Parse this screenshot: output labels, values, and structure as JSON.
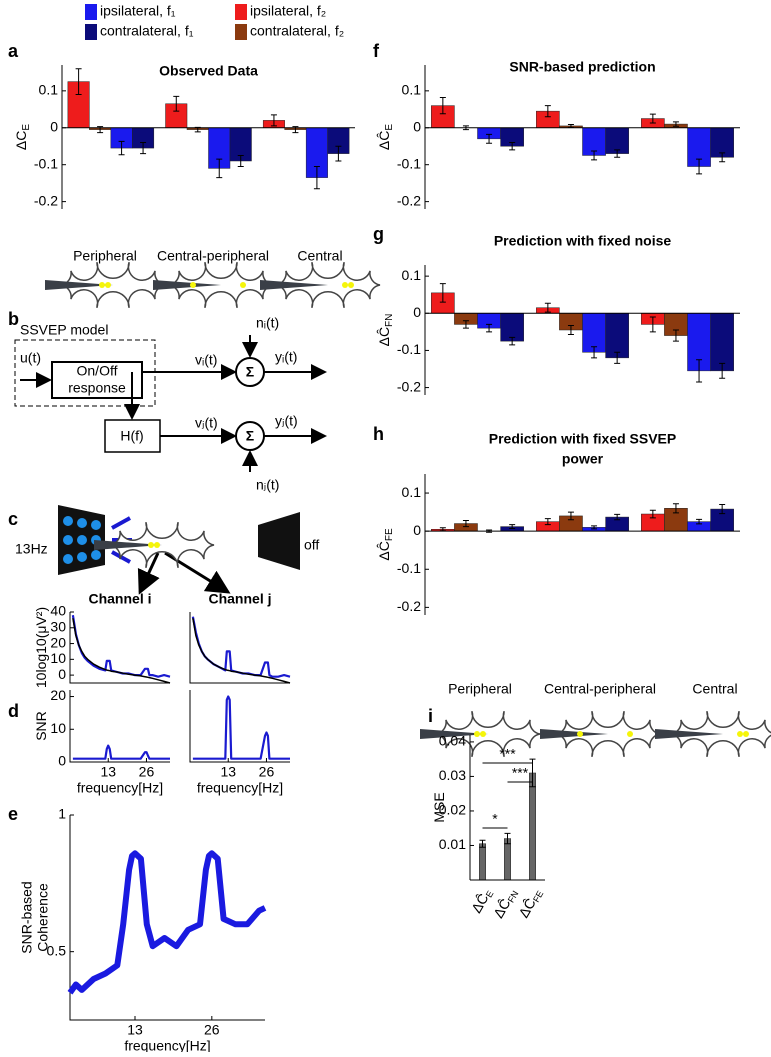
{
  "chart_data": [
    {
      "type": "bar",
      "title": "Observed Data",
      "ylabel": "ΔC",
      "ylabel_sub": "E",
      "categories": [
        "Peripheral",
        "Central-peripheral",
        "Central"
      ],
      "series": [
        {
          "name": "ipsilateral, f₂",
          "color": "#ee1c1c",
          "values": [
            0.125,
            0.065,
            0.02
          ],
          "errors": [
            0.035,
            0.02,
            0.015
          ]
        },
        {
          "name": "contralateral, f₂",
          "color": "#8b3a0f",
          "values": [
            -0.005,
            -0.005,
            -0.005
          ],
          "errors": [
            0.008,
            0.006,
            0.008
          ]
        },
        {
          "name": "ipsilateral, f₁",
          "color": "#1a1aee",
          "values": [
            -0.055,
            -0.11,
            -0.135
          ],
          "errors": [
            0.018,
            0.025,
            0.03
          ]
        },
        {
          "name": "contralateral, f₁",
          "color": "#0b0b7a",
          "values": [
            -0.055,
            -0.09,
            -0.07
          ],
          "errors": [
            0.015,
            0.015,
            0.02
          ]
        }
      ],
      "ylim": [
        -0.22,
        0.17
      ],
      "yticks": [
        0.1,
        0,
        -0.1,
        -0.2
      ]
    },
    {
      "type": "bar",
      "title": "SNR-based prediction",
      "ylabel": "ΔĈ",
      "ylabel_sub": "E",
      "series": [
        {
          "color": "#ee1c1c",
          "values": [
            0.06,
            0.045,
            0.025
          ],
          "errors": [
            0.022,
            0.015,
            0.012
          ]
        },
        {
          "color": "#8b3a0f",
          "values": [
            0.0,
            0.005,
            0.01
          ],
          "errors": [
            0.005,
            0.004,
            0.006
          ]
        },
        {
          "color": "#1a1aee",
          "values": [
            -0.03,
            -0.075,
            -0.105
          ],
          "errors": [
            0.012,
            0.012,
            0.02
          ]
        },
        {
          "color": "#0b0b7a",
          "values": [
            -0.05,
            -0.07,
            -0.08
          ],
          "errors": [
            0.01,
            0.01,
            0.012
          ]
        }
      ],
      "ylim": [
        -0.22,
        0.17
      ],
      "yticks": [
        0.1,
        0,
        -0.1,
        -0.2
      ]
    },
    {
      "type": "bar",
      "title": "Prediction with fixed noise",
      "ylabel": "ΔĈ",
      "ylabel_sub": "FN",
      "series": [
        {
          "color": "#ee1c1c",
          "values": [
            0.055,
            0.015,
            -0.03
          ],
          "errors": [
            0.025,
            0.012,
            0.02
          ]
        },
        {
          "color": "#8b3a0f",
          "values": [
            -0.03,
            -0.045,
            -0.06
          ],
          "errors": [
            0.01,
            0.012,
            0.015
          ]
        },
        {
          "color": "#1a1aee",
          "values": [
            -0.04,
            -0.105,
            -0.155
          ],
          "errors": [
            0.01,
            0.015,
            0.03
          ]
        },
        {
          "color": "#0b0b7a",
          "values": [
            -0.075,
            -0.12,
            -0.155
          ],
          "errors": [
            0.01,
            0.015,
            0.02
          ]
        }
      ],
      "ylim": [
        -0.22,
        0.13
      ],
      "yticks": [
        0.1,
        0,
        -0.1,
        -0.2
      ]
    },
    {
      "type": "bar",
      "title": [
        "Prediction with fixed SSVEP",
        "power"
      ],
      "ylabel": "ΔĈ",
      "ylabel_sub": "FE",
      "categories": [
        "Peripheral",
        "Central-peripheral",
        "Central"
      ],
      "series": [
        {
          "color": "#ee1c1c",
          "values": [
            0.005,
            0.025,
            0.045
          ],
          "errors": [
            0.004,
            0.008,
            0.01
          ]
        },
        {
          "color": "#8b3a0f",
          "values": [
            0.02,
            0.04,
            0.06
          ],
          "errors": [
            0.008,
            0.01,
            0.012
          ]
        },
        {
          "color": "#1a1aee",
          "values": [
            0.0,
            0.01,
            0.025
          ],
          "errors": [
            0.003,
            0.004,
            0.006
          ]
        },
        {
          "color": "#0b0b7a",
          "values": [
            0.012,
            0.037,
            0.058
          ],
          "errors": [
            0.005,
            0.007,
            0.012
          ]
        }
      ],
      "ylim": [
        -0.22,
        0.15
      ],
      "yticks": [
        0.1,
        0,
        -0.1,
        -0.2
      ]
    },
    {
      "type": "line",
      "title": "Channel i",
      "ylabel": "10log10(μV²)",
      "xlim": [
        0,
        34
      ],
      "ylim": [
        -5,
        40
      ],
      "yticks": [
        0,
        10,
        20,
        30,
        40
      ],
      "x": [
        1,
        2,
        3,
        4,
        5,
        6,
        8,
        10,
        12,
        12.5,
        13,
        13.5,
        14,
        16,
        18,
        20,
        22,
        24,
        25.5,
        26,
        26.5,
        27,
        28,
        30,
        32,
        34
      ],
      "series": [
        {
          "color": "#1a1ad0",
          "values": [
            38,
            26,
            19,
            14,
            11,
            9,
            6,
            4,
            3,
            9,
            9,
            9,
            3,
            2,
            1,
            1,
            0,
            0,
            4,
            4,
            4,
            0,
            0,
            -1,
            0,
            -1
          ]
        },
        {
          "color": "#000000",
          "values": [
            36,
            25,
            19,
            15,
            12,
            10,
            7,
            5,
            3.5,
            3.2,
            3,
            2.8,
            2.5,
            2,
            1.2,
            0.5,
            0,
            -0.5,
            -1,
            -1.2,
            -1.4,
            -1.6,
            -2,
            -3,
            -4,
            -5
          ]
        }
      ]
    },
    {
      "type": "line",
      "title": "Channel j",
      "xlim": [
        0,
        34
      ],
      "ylim": [
        -5,
        40
      ],
      "x": [
        1,
        2,
        3,
        4,
        5,
        6,
        8,
        10,
        12,
        12.5,
        13,
        13.5,
        14,
        16,
        18,
        20,
        22,
        24,
        25.5,
        26,
        26.5,
        27,
        28,
        30,
        32,
        34
      ],
      "series": [
        {
          "color": "#1a1ad0",
          "values": [
            37,
            27,
            20,
            15,
            12,
            10,
            7,
            5,
            3,
            15,
            15,
            15,
            3,
            2,
            1,
            1,
            0,
            0,
            8,
            8,
            8,
            0,
            -1,
            -1,
            0,
            -1
          ]
        },
        {
          "color": "#000000",
          "values": [
            36,
            25,
            19,
            15,
            12,
            10,
            7,
            5,
            3.5,
            3.2,
            3,
            2.8,
            2.5,
            2,
            1.2,
            0.5,
            0,
            -0.5,
            -1,
            -1.2,
            -1.4,
            -1.6,
            -2,
            -3,
            -4,
            -5
          ]
        }
      ]
    },
    {
      "type": "line",
      "ylabel": "SNR",
      "xlabel": "frequency[Hz]",
      "xlim": [
        0,
        34
      ],
      "ylim": [
        0,
        22
      ],
      "yticks": [
        0,
        10,
        20
      ],
      "xticks": [
        13,
        26
      ],
      "x": [
        1,
        2,
        3,
        4,
        5,
        6,
        8,
        10,
        12,
        12.5,
        13,
        13.5,
        14,
        16,
        18,
        20,
        22,
        24,
        25.5,
        26,
        26.5,
        27,
        28,
        30,
        32,
        34
      ],
      "series": [
        {
          "color": "#1a1ad0",
          "values": [
            1,
            1,
            1,
            1,
            1,
            1,
            1,
            1,
            1,
            4,
            5,
            4,
            1,
            1,
            1,
            1,
            1,
            1,
            3,
            3,
            2,
            1,
            1,
            1,
            1,
            1
          ]
        }
      ]
    },
    {
      "type": "line",
      "xlabel": "frequency[Hz]",
      "xlim": [
        0,
        34
      ],
      "ylim": [
        0,
        22
      ],
      "xticks": [
        13,
        26
      ],
      "x": [
        1,
        2,
        3,
        4,
        5,
        6,
        8,
        10,
        12,
        12.5,
        13,
        13.5,
        14,
        16,
        18,
        20,
        22,
        24,
        25.5,
        26,
        26.5,
        27,
        28,
        30,
        32,
        34
      ],
      "series": [
        {
          "color": "#1a1ad0",
          "values": [
            1,
            1,
            1,
            1,
            1,
            1,
            1,
            1,
            1,
            19,
            20,
            19,
            1,
            1,
            1,
            1,
            1,
            1,
            8,
            9,
            8,
            1,
            1,
            1,
            1,
            1
          ]
        }
      ]
    },
    {
      "type": "line",
      "ylabel": [
        "SNR-based",
        "Coherence"
      ],
      "xlabel": "frequency[Hz]",
      "xlim": [
        2,
        35
      ],
      "ylim": [
        0.25,
        1.0
      ],
      "yticks": [
        0.5,
        1
      ],
      "xticks": [
        13,
        26
      ],
      "x": [
        2,
        3,
        4,
        6,
        8,
        10,
        11,
        12,
        12.5,
        13,
        14,
        15,
        16,
        18,
        20,
        22,
        24,
        25,
        25.5,
        26,
        27,
        28,
        30,
        32,
        34,
        35
      ],
      "series": [
        {
          "color": "#1a1ae0",
          "values": [
            0.35,
            0.38,
            0.36,
            0.4,
            0.42,
            0.45,
            0.6,
            0.8,
            0.85,
            0.86,
            0.84,
            0.6,
            0.52,
            0.55,
            0.52,
            0.58,
            0.6,
            0.8,
            0.85,
            0.86,
            0.84,
            0.62,
            0.6,
            0.6,
            0.65,
            0.66
          ]
        }
      ]
    },
    {
      "type": "bar",
      "ylabel": "MSE",
      "categories": [
        "ΔĈ",
        "ΔĈ",
        "ΔĈ"
      ],
      "category_subs": [
        "E",
        "FN",
        "FE"
      ],
      "series": [
        {
          "color": "#666666",
          "values": [
            0.0105,
            0.012,
            0.031
          ],
          "errors": [
            0.001,
            0.0015,
            0.004
          ]
        }
      ],
      "ylim": [
        0,
        0.042
      ],
      "yticks": [
        0.01,
        0.02,
        0.03,
        0.04
      ],
      "annotations": [
        "*",
        "***",
        "***"
      ]
    }
  ],
  "panel_labels": [
    "a",
    "b",
    "c",
    "d",
    "e",
    "f",
    "g",
    "h",
    "i"
  ],
  "diagram": {
    "model": "SSVEP model",
    "input": "u(t)",
    "response": [
      "On/Off",
      "response"
    ],
    "vi": "vᵢ(t)",
    "yi": "yᵢ(t)",
    "ni": "nᵢ(t)",
    "filter": "H(f)",
    "vj": "vⱼ(t)",
    "yj": "yⱼ(t)",
    "nj": "nⱼ(t)",
    "sum": "Σ"
  },
  "stimulus": {
    "frequency": "13Hz",
    "off": "off"
  }
}
